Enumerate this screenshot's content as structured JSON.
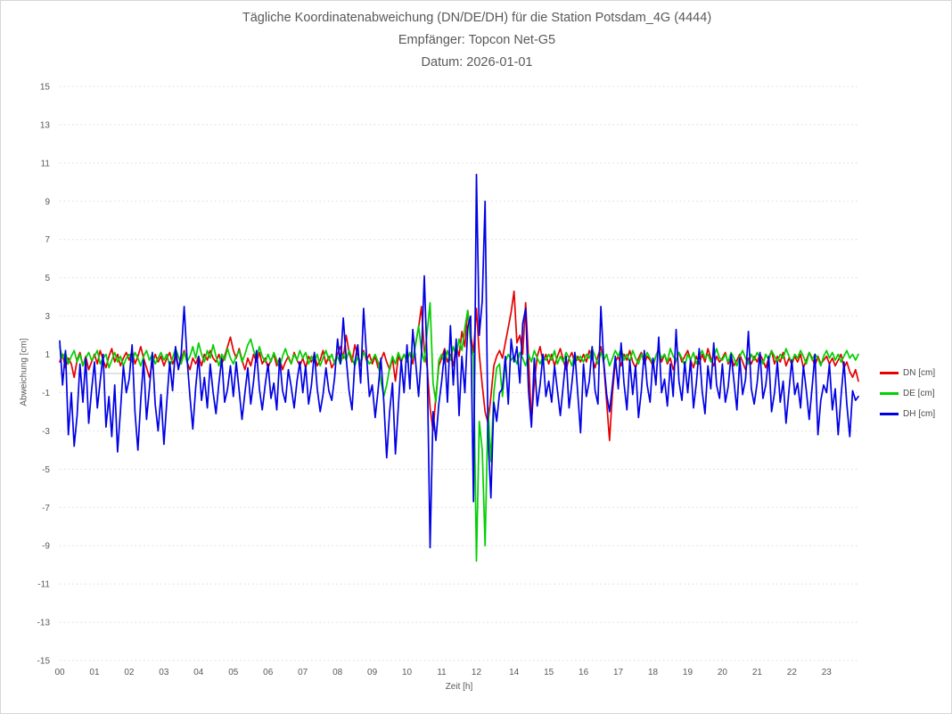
{
  "title": {
    "line1": "Tägliche Koordinatenabweichung (DN/DE/DH) für die Station Potsdam_4G (4444)",
    "line2": "Empfänger: Topcon Net-G5",
    "line3": "Datum: 2026-01-01"
  },
  "legend": [
    {
      "label": "DN [cm]",
      "color": "#e60000"
    },
    {
      "label": "DE [cm]",
      "color": "#00d000"
    },
    {
      "label": "DH [cm]",
      "color": "#0000e6"
    }
  ],
  "colors": {
    "grid_dotted": "#d9d9d9",
    "zero_axis_line": "#c6c6c6",
    "text": "#595959",
    "background": "#ffffff"
  },
  "chart_data": {
    "type": "line",
    "title": "Tägliche Koordinatenabweichung (DN/DE/DH) für die Station Potsdam_4G (4444)",
    "subtitle_receiver": "Empfänger: Topcon Net-G5",
    "subtitle_date": "Datum: 2026-01-01",
    "xlabel": "Zeit [h]",
    "ylabel": "Abweichung [cm]",
    "ylim": [
      -15,
      15
    ],
    "y_ticks": [
      15,
      13,
      11,
      9,
      7,
      5,
      3,
      1,
      -1,
      -3,
      -5,
      -7,
      -9,
      -11,
      -13,
      -15
    ],
    "grid": "horizontal dotted lines at odd values, solid gray line at 0",
    "legend_position": "right",
    "sampling_minutes": 5,
    "data_gap_note": "Samples 12:45-13:35 missing, so x tick label 13 is absent",
    "x_ticks": [
      {
        "label": "00",
        "index": 0
      },
      {
        "label": "01",
        "index": 12
      },
      {
        "label": "02",
        "index": 24
      },
      {
        "label": "03",
        "index": 36
      },
      {
        "label": "04",
        "index": 48
      },
      {
        "label": "05",
        "index": 60
      },
      {
        "label": "06",
        "index": 72
      },
      {
        "label": "07",
        "index": 84
      },
      {
        "label": "08",
        "index": 96
      },
      {
        "label": "09",
        "index": 108
      },
      {
        "label": "10",
        "index": 120
      },
      {
        "label": "11",
        "index": 132
      },
      {
        "label": "12",
        "index": 144
      },
      {
        "label": "14",
        "index": 157
      },
      {
        "label": "15",
        "index": 169
      },
      {
        "label": "16",
        "index": 181
      },
      {
        "label": "17",
        "index": 193
      },
      {
        "label": "18",
        "index": 205
      },
      {
        "label": "19",
        "index": 217
      },
      {
        "label": "20",
        "index": 229
      },
      {
        "label": "21",
        "index": 241
      },
      {
        "label": "22",
        "index": 253
      },
      {
        "label": "23",
        "index": 265
      }
    ],
    "series": [
      {
        "name": "DN [cm]",
        "color": "#e60000",
        "values": [
          0.6,
          1.0,
          0.3,
          0.8,
          0.5,
          -0.2,
          0.7,
          1.1,
          0.4,
          0.9,
          0.2,
          0.6,
          1.0,
          0.5,
          1.2,
          0.7,
          0.3,
          0.9,
          1.3,
          0.6,
          1.0,
          0.4,
          0.8,
          1.1,
          0.7,
          1.2,
          0.5,
          0.9,
          1.4,
          0.8,
          0.3,
          -0.2,
          0.5,
          1.0,
          0.6,
          0.9,
          0.4,
          0.8,
          1.1,
          0.5,
          0.9,
          0.3,
          0.7,
          1.2,
          0.6,
          0.2,
          0.8,
          0.5,
          0.9,
          0.4,
          1.0,
          0.7,
          1.2,
          0.8,
          0.6,
          1.0,
          0.5,
          0.9,
          1.4,
          1.9,
          1.2,
          0.8,
          1.3,
          0.7,
          0.2,
          0.8,
          0.4,
          1.0,
          0.6,
          1.1,
          0.5,
          0.8,
          0.3,
          0.7,
          1.0,
          0.4,
          0.8,
          0.2,
          0.6,
          0.9,
          0.5,
          1.1,
          0.7,
          0.4,
          0.8,
          0.3,
          0.9,
          0.6,
          1.0,
          0.4,
          0.7,
          1.2,
          0.5,
          0.9,
          0.3,
          0.6,
          1.0,
          1.4,
          0.8,
          2.0,
          1.1,
          0.6,
          1.5,
          0.9,
          0.4,
          1.2,
          0.7,
          1.0,
          0.5,
          0.9,
          0.3,
          0.7,
          1.1,
          0.6,
          0.2,
          0.8,
          -0.4,
          0.9,
          0.6,
          1.0,
          0.7,
          1.1,
          0.5,
          1.6,
          2.4,
          3.5,
          1.2,
          0.3,
          -1.8,
          -3.0,
          -1.2,
          0.4,
          0.8,
          1.3,
          0.6,
          1.0,
          0.4,
          1.5,
          0.9,
          2.2,
          1.4,
          3.3,
          2.0,
          1.1,
          3.4,
          1.0,
          -0.6,
          -2.0,
          -2.6,
          -1.2,
          0.4,
          0.9,
          1.2,
          0.8,
          1.6,
          2.4,
          3.2,
          4.3,
          1.6,
          2.0,
          1.0,
          3.7,
          0.8,
          -2.5,
          -0.5,
          0.9,
          1.4,
          0.6,
          1.0,
          0.5,
          1.0,
          0.4,
          0.9,
          1.3,
          0.7,
          0.2,
          0.8,
          1.1,
          0.5,
          0.9,
          0.6,
          1.0,
          0.6,
          1.2,
          0.8,
          0.3,
          0.9,
          1.4,
          0.5,
          -1.5,
          -3.5,
          -1.0,
          0.6,
          0.9,
          0.4,
          1.0,
          0.7,
          1.2,
          0.6,
          0.3,
          0.8,
          1.1,
          0.5,
          0.9,
          0.7,
          0.4,
          0.9,
          1.3,
          0.6,
          1.0,
          0.5,
          0.8,
          0.2,
          0.7,
          1.1,
          0.6,
          0.9,
          1.2,
          0.7,
          0.3,
          0.9,
          0.5,
          1.0,
          0.6,
          1.3,
          0.8,
          0.4,
          0.9,
          0.6,
          0.8,
          1.1,
          0.5,
          0.9,
          0.4,
          0.7,
          1.0,
          0.6,
          0.2,
          0.8,
          0.5,
          0.9,
          0.6,
          1.0,
          0.7,
          0.3,
          0.8,
          1.2,
          0.5,
          0.9,
          0.6,
          1.1,
          0.4,
          0.8,
          0.5,
          0.9,
          0.6,
          1.0,
          0.3,
          0.7,
          1.1,
          0.8,
          0.4,
          0.9,
          0.5,
          0.7,
          0.9,
          0.5,
          0.8,
          0.4,
          0.7,
          1.0,
          0.3,
          0.6,
          0.1,
          -0.2,
          0.2,
          -0.4
        ]
      },
      {
        "name": "DE [cm]",
        "color": "#00d000",
        "values": [
          1.4,
          0.8,
          1.1,
          0.5,
          0.9,
          1.2,
          0.6,
          1.0,
          0.4,
          0.8,
          1.1,
          0.7,
          0.9,
          1.2,
          0.5,
          0.8,
          1.0,
          0.3,
          0.7,
          1.1,
          0.6,
          0.9,
          0.4,
          0.8,
          1.0,
          0.6,
          1.1,
          0.8,
          0.4,
          0.9,
          1.2,
          0.7,
          1.0,
          0.5,
          0.8,
          1.1,
          0.7,
          1.0,
          0.4,
          0.8,
          1.3,
          0.9,
          0.5,
          1.1,
          0.6,
          0.9,
          1.4,
          0.8,
          1.6,
          1.0,
          0.6,
          1.2,
          0.8,
          1.5,
          0.9,
          0.4,
          1.0,
          0.7,
          1.3,
          0.8,
          0.5,
          0.9,
          1.2,
          0.6,
          1.0,
          1.5,
          1.8,
          1.2,
          0.8,
          1.4,
          0.9,
          0.6,
          1.0,
          0.6,
          1.1,
          0.7,
          0.3,
          0.9,
          1.3,
          0.8,
          0.5,
          1.0,
          0.7,
          1.2,
          0.8,
          1.1,
          0.5,
          0.9,
          0.6,
          1.0,
          0.4,
          0.8,
          1.2,
          0.7,
          1.0,
          0.5,
          0.9,
          0.5,
          1.0,
          0.7,
          1.2,
          0.8,
          0.4,
          0.9,
          0.6,
          1.1,
          0.8,
          0.5,
          0.7,
          1.0,
          0.6,
          -0.4,
          -1.2,
          -0.6,
          0.3,
          0.9,
          0.5,
          1.1,
          0.7,
          1.0,
          0.6,
          1.1,
          0.8,
          1.5,
          2.5,
          1.2,
          0.6,
          2.2,
          3.7,
          -0.5,
          -1.5,
          0.7,
          1.0,
          0.5,
          1.2,
          0.7,
          1.4,
          0.9,
          1.8,
          1.2,
          2.4,
          3.3,
          1.6,
          0.9,
          -9.8,
          -2.5,
          -4.0,
          -9.0,
          -1.8,
          -4.6,
          -1.0,
          0.3,
          0.5,
          -1.2,
          0.6,
          1.0,
          0.7,
          0.9,
          0.5,
          1.1,
          0.8,
          0.4,
          1.0,
          0.6,
          1.2,
          0.8,
          0.5,
          0.9,
          0.7,
          1.0,
          0.7,
          1.2,
          0.5,
          0.9,
          0.6,
          1.1,
          0.8,
          0.4,
          1.0,
          0.7,
          0.9,
          0.6,
          1.0,
          0.8,
          1.3,
          0.9,
          0.5,
          1.1,
          0.7,
          1.0,
          0.4,
          0.8,
          1.2,
          0.9,
          1.3,
          0.7,
          1.0,
          0.6,
          1.2,
          0.8,
          0.5,
          1.0,
          0.7,
          1.1,
          0.8,
          0.5,
          0.9,
          1.2,
          0.8,
          1.0,
          0.6,
          1.3,
          0.9,
          0.7,
          1.1,
          0.8,
          0.4,
          1.0,
          0.7,
          1.1,
          0.5,
          0.9,
          1.2,
          0.8,
          1.0,
          0.6,
          0.9,
          1.3,
          0.8,
          0.7,
          1.0,
          0.6,
          1.1,
          0.8,
          0.4,
          0.9,
          1.2,
          0.8,
          0.5,
          1.0,
          0.7,
          1.1,
          0.8,
          0.5,
          1.0,
          0.7,
          1.2,
          0.9,
          0.6,
          1.0,
          0.8,
          1.3,
          0.9,
          0.6,
          1.0,
          0.8,
          1.2,
          0.9,
          0.5,
          1.1,
          0.7,
          1.0,
          0.8,
          0.4,
          0.9,
          1.2,
          0.8,
          1.1,
          0.7,
          1.0,
          0.6,
          0.9,
          1.2,
          0.8,
          1.0,
          0.7,
          1.0
        ]
      },
      {
        "name": "DH [cm]",
        "color": "#0000e6",
        "values": [
          1.7,
          -0.6,
          1.2,
          -3.2,
          -1.0,
          -3.8,
          -2.2,
          0.5,
          -1.5,
          0.8,
          -2.6,
          -0.9,
          0.6,
          -1.8,
          -0.4,
          1.0,
          -2.8,
          -1.2,
          -3.3,
          -0.6,
          -4.1,
          -1.9,
          0.4,
          -1.0,
          -0.3,
          1.5,
          -2.0,
          -4.0,
          -1.4,
          0.7,
          -2.4,
          -0.8,
          1.1,
          -1.6,
          -3.0,
          -1.1,
          -3.7,
          -1.5,
          0.6,
          -0.9,
          1.4,
          0.2,
          1.0,
          3.5,
          0.8,
          -1.2,
          -2.9,
          -0.7,
          0.9,
          -1.4,
          -0.2,
          -1.8,
          0.5,
          -1.0,
          -2.1,
          -0.5,
          0.8,
          -1.5,
          -0.8,
          0.4,
          -1.2,
          0.6,
          -0.9,
          -2.4,
          -1.0,
          0.3,
          -1.6,
          -0.4,
          1.2,
          -0.8,
          -1.9,
          -0.6,
          0.5,
          -1.3,
          -0.5,
          -1.9,
          0.8,
          -0.9,
          -1.5,
          0.2,
          -0.7,
          -1.8,
          -0.4,
          0.6,
          -1.0,
          0.4,
          -1.6,
          -0.6,
          1.1,
          -0.8,
          -2.0,
          -1.1,
          0.3,
          -0.9,
          -1.4,
          -0.2,
          1.8,
          0.5,
          2.9,
          0.8,
          -0.9,
          -1.9,
          0.6,
          1.5,
          -0.5,
          3.4,
          1.0,
          -1.2,
          -0.6,
          -2.3,
          -0.9,
          0.8,
          -1.5,
          -4.4,
          -2.0,
          -0.5,
          -4.2,
          -1.8,
          0.7,
          -1.0,
          1.5,
          -0.8,
          2.3,
          0.6,
          -1.2,
          1.0,
          5.1,
          0.4,
          -9.1,
          -2.0,
          -3.5,
          -1.6,
          -0.4,
          1.2,
          -1.5,
          2.5,
          -0.6,
          1.8,
          -2.2,
          0.9,
          -1.0,
          2.4,
          3.0,
          -6.7,
          10.4,
          2.0,
          3.8,
          9.0,
          -3.3,
          -6.5,
          -1.5,
          -2.5,
          -1.0,
          -0.8,
          0.9,
          -1.6,
          1.8,
          0.6,
          1.4,
          -0.5,
          2.6,
          3.4,
          -0.9,
          -2.8,
          0.8,
          -1.7,
          -0.6,
          1.0,
          -1.2,
          -0.4,
          -1.5,
          0.4,
          -0.9,
          -2.2,
          -0.6,
          0.9,
          -1.8,
          -0.5,
          1.1,
          -1.0,
          -3.1,
          0.5,
          -1.2,
          -0.4,
          1.4,
          -0.9,
          -1.6,
          3.5,
          0.6,
          -1.1,
          -2.0,
          -0.6,
          0.9,
          -0.8,
          1.6,
          -0.5,
          -1.9,
          0.7,
          -1.1,
          0.4,
          -2.3,
          -0.9,
          1.2,
          -0.6,
          -1.5,
          0.8,
          -0.6,
          1.9,
          -1.0,
          -0.3,
          -1.7,
          0.5,
          -1.2,
          2.3,
          -0.4,
          -1.4,
          0.6,
          -1.0,
          0.7,
          -1.8,
          -0.5,
          1.3,
          -0.9,
          -2.1,
          0.4,
          -0.8,
          1.6,
          -0.6,
          -1.3,
          0.5,
          -1.5,
          -0.7,
          1.0,
          -0.4,
          -1.9,
          0.8,
          -1.1,
          -0.3,
          2.2,
          -0.8,
          -1.6,
          -0.5,
          1.1,
          -1.3,
          -0.6,
          0.9,
          -2.0,
          -1.0,
          0.6,
          -1.5,
          -0.4,
          -2.6,
          -0.9,
          0.7,
          -1.1,
          -0.5,
          -1.8,
          0.4,
          -0.9,
          -2.4,
          -0.7,
          1.0,
          -3.2,
          -1.4,
          -0.6,
          -1.0,
          0.5,
          -1.9,
          -0.8,
          -3.2,
          -1.2,
          0.6,
          -1.6,
          -3.3,
          -0.9,
          -1.4,
          -1.2
        ]
      }
    ]
  }
}
